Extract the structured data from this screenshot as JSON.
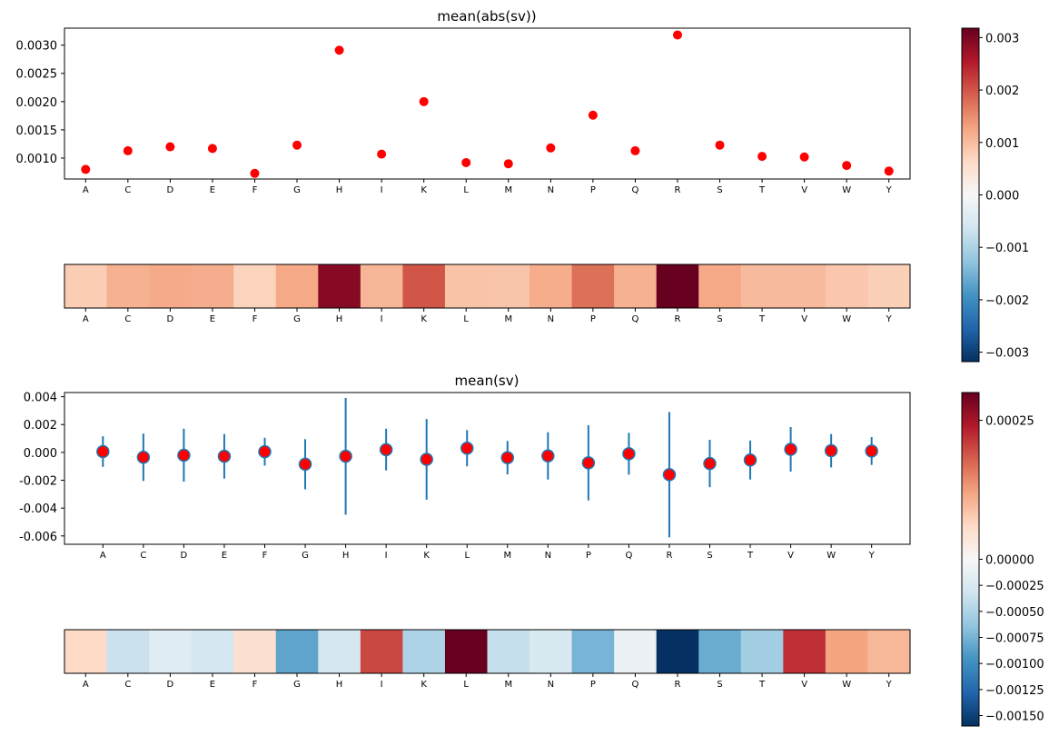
{
  "chart_data": [
    {
      "type": "scatter",
      "title": "mean(abs(sv))",
      "categories": [
        "A",
        "C",
        "D",
        "E",
        "F",
        "G",
        "H",
        "I",
        "K",
        "L",
        "M",
        "N",
        "P",
        "Q",
        "R",
        "S",
        "T",
        "V",
        "W",
        "Y"
      ],
      "values": [
        0.0008,
        0.00113,
        0.0012,
        0.00117,
        0.00073,
        0.00123,
        0.00291,
        0.00107,
        0.002,
        0.00092,
        0.0009,
        0.00118,
        0.00176,
        0.00113,
        0.00318,
        0.00123,
        0.00103,
        0.00102,
        0.00087,
        0.00077
      ],
      "yticks": [
        "0.0010",
        "0.0015",
        "0.0020",
        "0.0025",
        "0.0030"
      ],
      "ylim": [
        0.00063,
        0.0033
      ],
      "marker_color": "#ff0000"
    },
    {
      "type": "heatmap",
      "categories": [
        "A",
        "C",
        "D",
        "E",
        "F",
        "G",
        "H",
        "I",
        "K",
        "L",
        "M",
        "N",
        "P",
        "Q",
        "R",
        "S",
        "T",
        "V",
        "W",
        "Y"
      ],
      "values": [
        0.0008,
        0.00113,
        0.0012,
        0.00117,
        0.00073,
        0.00123,
        0.00291,
        0.00107,
        0.002,
        0.00092,
        0.0009,
        0.00118,
        0.00176,
        0.00113,
        0.00318,
        0.00123,
        0.00103,
        0.00102,
        0.00087,
        0.00077
      ],
      "colormap": "RdBu_r",
      "vmin": -0.00318,
      "vmax": 0.00318
    },
    {
      "type": "errorbar",
      "title": "mean(sv)",
      "categories": [
        "A",
        "C",
        "D",
        "E",
        "F",
        "G",
        "H",
        "I",
        "K",
        "L",
        "M",
        "N",
        "P",
        "Q",
        "R",
        "S",
        "T",
        "V",
        "W",
        "Y"
      ],
      "values": [
        6e-05,
        -0.00035,
        -0.0002,
        -0.00028,
        5e-05,
        -0.00085,
        -0.00028,
        0.0002,
        -0.0005,
        0.0003,
        -0.00038,
        -0.00025,
        -0.00075,
        -0.0001,
        -0.0016,
        -0.0008,
        -0.00055,
        0.00022,
        0.00012,
        0.0001
      ],
      "errors": [
        0.0011,
        0.0017,
        0.0019,
        0.0016,
        0.001,
        0.0018,
        0.0042,
        0.0015,
        0.0029,
        0.0013,
        0.0012,
        0.0017,
        0.0027,
        0.0015,
        0.0045,
        0.0017,
        0.0014,
        0.0016,
        0.0012,
        0.001
      ],
      "yticks": [
        "-0.006",
        "-0.004",
        "-0.002",
        "0.000",
        "0.002",
        "0.004"
      ],
      "ylim": [
        -0.0066,
        0.0043
      ],
      "marker_color": "#ff0000",
      "errorbar_color": "#1f77b4"
    },
    {
      "type": "heatmap",
      "categories": [
        "A",
        "C",
        "D",
        "E",
        "F",
        "G",
        "H",
        "I",
        "K",
        "L",
        "M",
        "N",
        "P",
        "Q",
        "R",
        "S",
        "T",
        "V",
        "W",
        "Y"
      ],
      "values": [
        6e-05,
        -0.00035,
        -0.0002,
        -0.00028,
        5e-05,
        -0.00085,
        -0.00028,
        0.0002,
        -0.0005,
        0.0003,
        -0.00038,
        -0.00025,
        -0.00075,
        -0.0001,
        -0.0016,
        -0.0008,
        -0.00055,
        0.00022,
        0.00012,
        0.0001
      ],
      "colormap": "RdBu_r",
      "vmin": -0.0016,
      "vmax": 0.0003
    }
  ],
  "colorbars": [
    {
      "ticks": [
        "−0.003",
        "−0.002",
        "−0.001",
        "0.000",
        "0.001",
        "0.002",
        "0.003"
      ],
      "tick_values": [
        -0.003,
        -0.002,
        -0.001,
        0.0,
        0.001,
        0.002,
        0.003
      ],
      "vmin": -0.00318,
      "vmax": 0.00318
    },
    {
      "ticks": [
        "−0.00150",
        "−0.00125",
        "−0.00100",
        "−0.00075",
        "−0.00050",
        "−0.00025",
        "0.00000",
        "0.00025"
      ],
      "tick_values": [
        -0.0015,
        -0.00125,
        -0.001,
        -0.00075,
        -0.0005,
        -0.00025,
        0.0,
        0.00025
      ],
      "vmin": -0.0016,
      "vmax": 0.0003
    }
  ]
}
